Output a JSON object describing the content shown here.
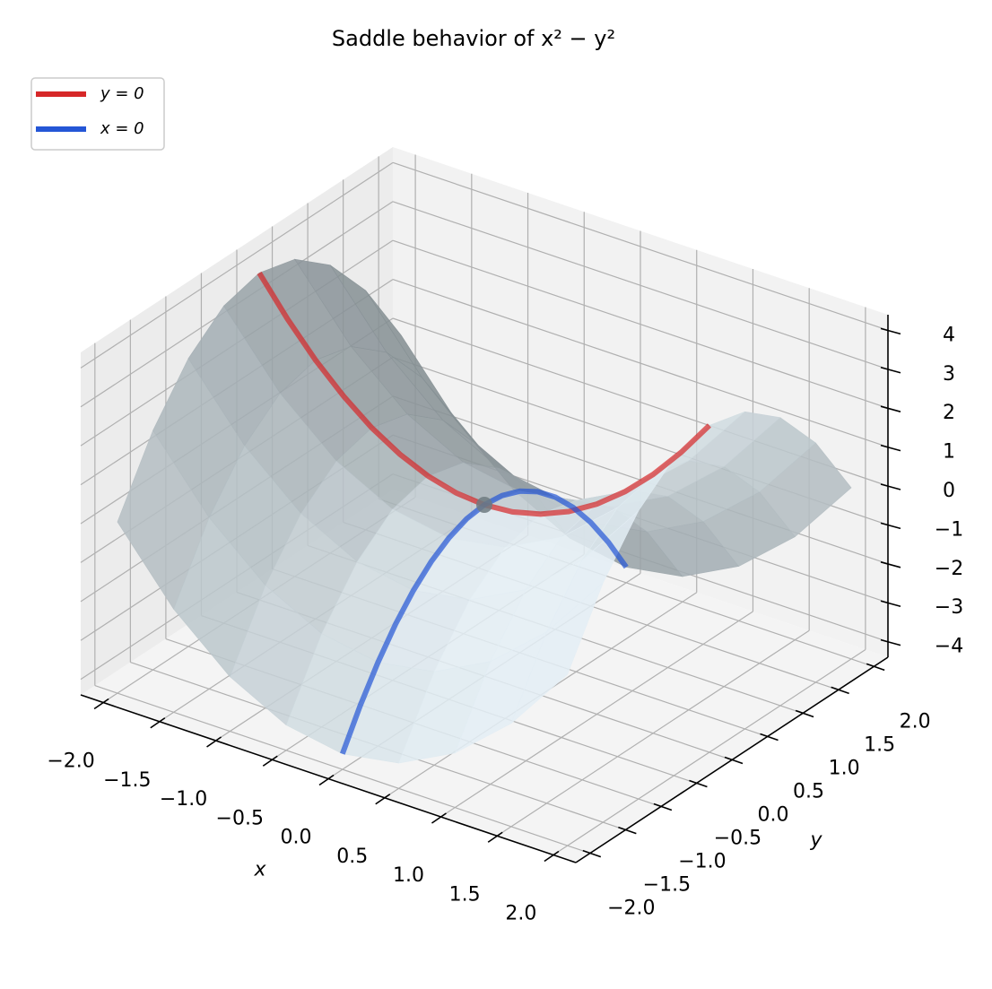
{
  "chart_data": {
    "type": "surface3d",
    "title": "Saddle behavior of x² − y²",
    "xlabel": "x",
    "ylabel": "y",
    "xlim": [
      -2.2,
      2.2
    ],
    "ylim": [
      -2.2,
      2.2
    ],
    "zlim": [
      -4.4,
      4.4
    ],
    "xticks": [
      {
        "value": -2,
        "label": "−2.0"
      },
      {
        "value": -1.5,
        "label": "−1.5"
      },
      {
        "value": -1,
        "label": "−1.0"
      },
      {
        "value": -0.5,
        "label": "−0.5"
      },
      {
        "value": 0,
        "label": "0.0"
      },
      0.5,
      {
        "value": 1,
        "label": "1.0"
      },
      1.5,
      {
        "value": 2,
        "label": "2.0"
      }
    ],
    "yticks": [
      {
        "value": -2,
        "label": "−2.0"
      },
      {
        "value": -1.5,
        "label": "−1.5"
      },
      {
        "value": -1,
        "label": "−1.0"
      },
      {
        "value": -0.5,
        "label": "−0.5"
      },
      {
        "value": 0,
        "label": "0.0"
      },
      0.5,
      {
        "value": 1,
        "label": "1.0"
      },
      1.5,
      {
        "value": 2,
        "label": "2.0"
      }
    ],
    "zticks": [
      {
        "value": -4,
        "label": "−4"
      },
      {
        "value": -3,
        "label": "−3"
      },
      {
        "value": -2,
        "label": "−2"
      },
      {
        "value": -1,
        "label": "−1"
      },
      0,
      1,
      2,
      3,
      4
    ],
    "grid": true,
    "legend": "upper left",
    "surface": {
      "x": [
        -2,
        -1.5,
        -1,
        -0.5,
        0,
        0.5,
        1,
        1.5,
        2
      ],
      "y": [
        -2,
        -1.5,
        -1,
        -0.5,
        0,
        0.5,
        1,
        1.5,
        2
      ],
      "z": [
        [
          0,
          -1.75,
          -3,
          -3.75,
          -4,
          -3.75,
          -3,
          -1.75,
          0
        ],
        [
          1.75,
          0,
          -1.25,
          -2,
          -2.25,
          -2,
          -1.25,
          0,
          1.75
        ],
        [
          3,
          1.25,
          0,
          -0.75,
          -1,
          -0.75,
          0,
          1.25,
          3
        ],
        [
          3.75,
          2,
          0.75,
          0,
          -0.25,
          0,
          0.75,
          2,
          3.75
        ],
        [
          4,
          2.25,
          1,
          0.25,
          0,
          0.25,
          1,
          2.25,
          4
        ],
        [
          3.75,
          2,
          0.75,
          0,
          -0.25,
          0,
          0.75,
          2,
          3.75
        ],
        [
          3,
          1.25,
          0,
          -0.75,
          -1,
          -0.75,
          0,
          1.25,
          3
        ],
        [
          1.75,
          0,
          -1.25,
          -2,
          -2.25,
          -2,
          -1.25,
          0,
          1.75
        ],
        [
          0,
          -1.75,
          -3,
          -3.75,
          -4,
          -3.75,
          -3,
          -1.75,
          0
        ]
      ]
    },
    "series": [
      {
        "name": "y = 0",
        "color": "#d62728",
        "x": [
          -2,
          -1.75,
          -1.5,
          -1.25,
          -1,
          -0.75,
          -0.5,
          -0.25,
          0,
          0.25,
          0.5,
          0.75,
          1,
          1.25,
          1.5,
          1.75,
          2
        ],
        "y": [
          0,
          0,
          0,
          0,
          0,
          0,
          0,
          0,
          0,
          0,
          0,
          0,
          0,
          0,
          0,
          0,
          0
        ],
        "z": [
          4,
          3.0625,
          2.25,
          1.5625,
          1,
          0.5625,
          0.25,
          0.0625,
          0,
          0.0625,
          0.25,
          0.5625,
          1,
          1.5625,
          2.25,
          3.0625,
          4
        ]
      },
      {
        "name": "x = 0",
        "color": "#2456d6",
        "x": [
          0,
          0,
          0,
          0,
          0,
          0,
          0,
          0,
          0,
          0,
          0,
          0,
          0,
          0,
          0,
          0,
          0
        ],
        "y": [
          -2,
          -1.75,
          -1.5,
          -1.25,
          -1,
          -0.75,
          -0.5,
          -0.25,
          0,
          0.25,
          0.5,
          0.75,
          1,
          1.25,
          1.5,
          1.75,
          2
        ],
        "z": [
          -4,
          -3.0625,
          -2.25,
          -1.5625,
          -1,
          -0.5625,
          -0.25,
          -0.0625,
          0,
          -0.0625,
          -0.25,
          -0.5625,
          -1,
          -1.5625,
          -2.25,
          -3.0625,
          -4
        ]
      }
    ],
    "saddle_point": {
      "x": 0,
      "y": 0,
      "z": 0,
      "color": "#6e7a80"
    }
  }
}
